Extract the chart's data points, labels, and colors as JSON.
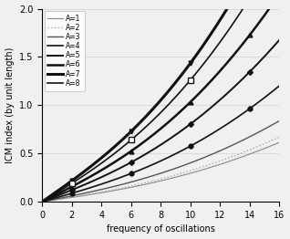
{
  "series": [
    {
      "A": 1,
      "label": "A=1",
      "linestyle": "-",
      "linewidth": 0.8,
      "color": "#888888",
      "marker": null,
      "markersize": 3,
      "markerfacecolor": "#888888",
      "markeredgecolor": "#888888"
    },
    {
      "A": 2,
      "label": "A=2",
      "linestyle": ":",
      "linewidth": 1.0,
      "color": "#aaaaaa",
      "marker": null,
      "markersize": 3,
      "markerfacecolor": "#aaaaaa",
      "markeredgecolor": "#aaaaaa"
    },
    {
      "A": 3,
      "label": "A=3",
      "linestyle": "-",
      "linewidth": 1.0,
      "color": "#555555",
      "marker": null,
      "markersize": 3,
      "markerfacecolor": "#555555",
      "markeredgecolor": "#555555"
    },
    {
      "A": 4,
      "label": "A=4",
      "linestyle": "-",
      "linewidth": 1.2,
      "color": "#111111",
      "marker": "o",
      "markersize": 3.5,
      "markerfacecolor": "#111111",
      "markeredgecolor": "#111111"
    },
    {
      "A": 5,
      "label": "A=5",
      "linestyle": "-",
      "linewidth": 1.4,
      "color": "#111111",
      "marker": "D",
      "markersize": 3,
      "markerfacecolor": "#111111",
      "markeredgecolor": "#111111"
    },
    {
      "A": 6,
      "label": "A=6",
      "linestyle": "-",
      "linewidth": 1.8,
      "color": "#111111",
      "marker": "^",
      "markersize": 3.5,
      "markerfacecolor": "#111111",
      "markeredgecolor": "#111111"
    },
    {
      "A": 7,
      "label": "A=7",
      "linestyle": "-",
      "linewidth": 2.2,
      "color": "#111111",
      "marker": "v",
      "markersize": 3.5,
      "markerfacecolor": "#111111",
      "markeredgecolor": "#111111"
    },
    {
      "A": 8,
      "label": "A=8",
      "linestyle": "-",
      "linewidth": 1.2,
      "color": "#111111",
      "marker": "s",
      "markersize": 4,
      "markerfacecolor": "white",
      "markeredgecolor": "#111111"
    }
  ],
  "slopes": [
    0.022,
    0.024,
    0.03,
    0.043,
    0.06,
    0.077,
    0.107,
    0.094
  ],
  "xlabel": "frequency of oscillations",
  "ylabel": "ICM index (by unit length)",
  "xlim": [
    0,
    16
  ],
  "ylim": [
    0,
    2.0
  ],
  "yticks": [
    0,
    0.5,
    1.0,
    1.5,
    2.0
  ],
  "xticks": [
    0,
    2,
    4,
    6,
    8,
    10,
    12,
    14,
    16
  ],
  "grid_y": true,
  "legend_loc": "upper left",
  "figsize": [
    3.18,
    2.62
  ],
  "dpi": 100,
  "background_color": "#f0f0f0"
}
